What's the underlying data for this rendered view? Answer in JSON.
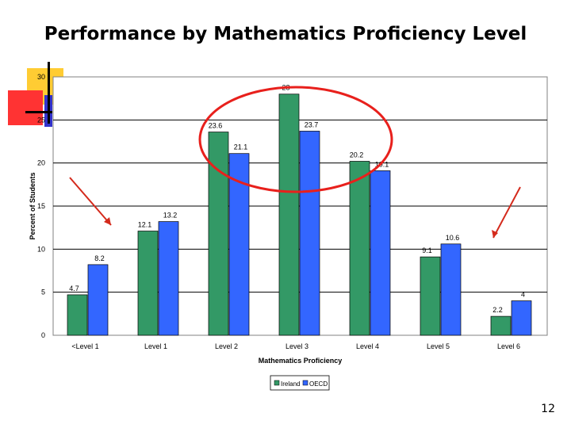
{
  "slide": {
    "title": "Performance by Mathematics Proficiency Level",
    "page_number": "12"
  },
  "chart_data": {
    "type": "bar",
    "title": "",
    "xlabel": "Mathematics Proficiency",
    "ylabel": "Percent of Students",
    "ylim": [
      0,
      30
    ],
    "yticks": [
      0,
      5,
      10,
      15,
      20,
      25,
      30
    ],
    "grid": true,
    "legend_placement": "bottom",
    "categories": [
      "<Level 1",
      "Level 1",
      "Level 2",
      "Level 3",
      "Level 4",
      "Level 5",
      "Level 6"
    ],
    "series": [
      {
        "name": "Ireland",
        "color": "#339966",
        "values": [
          4.7,
          12.1,
          23.6,
          28,
          20.2,
          9.1,
          2.2
        ],
        "labels": [
          "4.7",
          "12.1",
          "23.6",
          "28",
          "20.2",
          "9.1",
          "2.2"
        ]
      },
      {
        "name": "OECD",
        "color": "#3366ff",
        "values": [
          8.2,
          13.2,
          21.1,
          23.7,
          19.1,
          10.6,
          4
        ],
        "labels": [
          "8.2",
          "13.2",
          "21.1",
          "23.7",
          "19.1",
          "10.6",
          "4"
        ]
      }
    ]
  }
}
